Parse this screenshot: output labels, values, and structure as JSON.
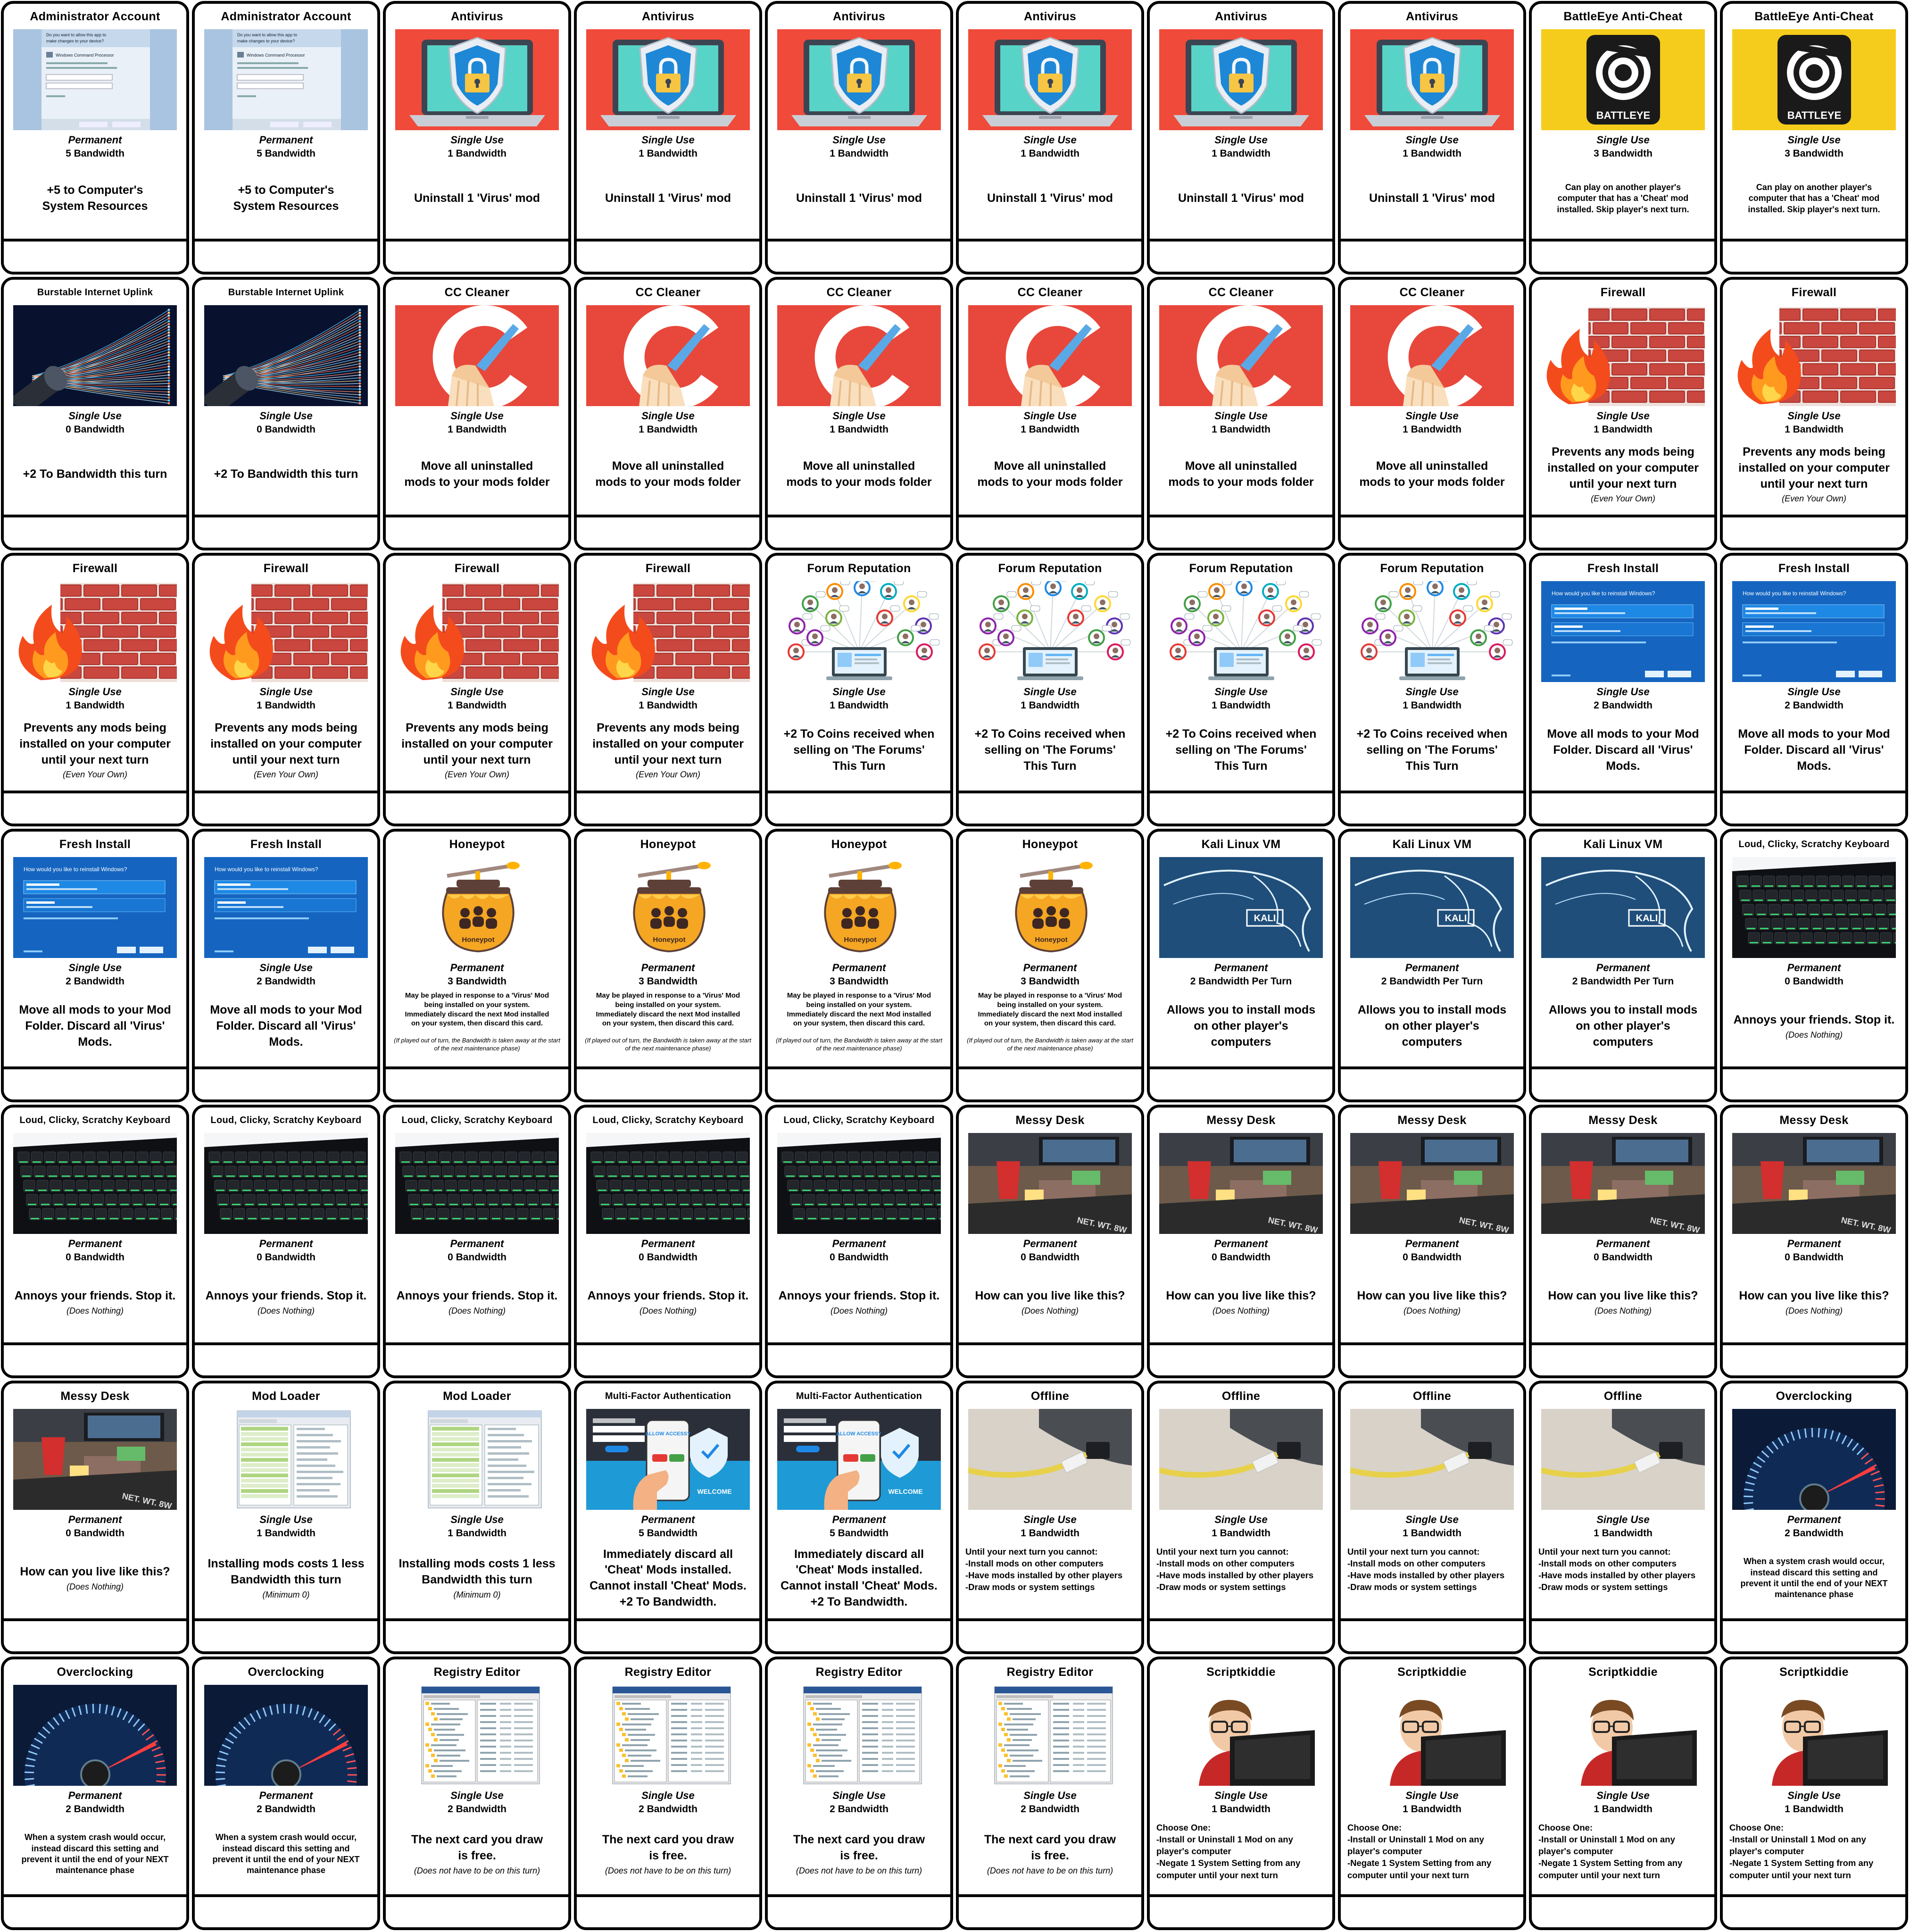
{
  "cards": [
    {
      "title": "Administrator Account",
      "usage": "Permanent",
      "bandwidth": "5 Bandwidth",
      "text": "+5 to Computer's\nSystem Resources",
      "note": "",
      "art": "uac",
      "style": ""
    },
    {
      "title": "Administrator Account",
      "usage": "Permanent",
      "bandwidth": "5 Bandwidth",
      "text": "+5 to Computer's\nSystem Resources",
      "note": "",
      "art": "uac",
      "style": ""
    },
    {
      "title": "Antivirus",
      "usage": "Single Use",
      "bandwidth": "1 Bandwidth",
      "text": "Uninstall 1 'Virus' mod",
      "note": "",
      "art": "antivirus",
      "style": ""
    },
    {
      "title": "Antivirus",
      "usage": "Single Use",
      "bandwidth": "1 Bandwidth",
      "text": "Uninstall 1 'Virus' mod",
      "note": "",
      "art": "antivirus",
      "style": ""
    },
    {
      "title": "Antivirus",
      "usage": "Single Use",
      "bandwidth": "1 Bandwidth",
      "text": "Uninstall 1 'Virus' mod",
      "note": "",
      "art": "antivirus",
      "style": ""
    },
    {
      "title": "Antivirus",
      "usage": "Single Use",
      "bandwidth": "1 Bandwidth",
      "text": "Uninstall 1 'Virus' mod",
      "note": "",
      "art": "antivirus",
      "style": ""
    },
    {
      "title": "Antivirus",
      "usage": "Single Use",
      "bandwidth": "1 Bandwidth",
      "text": "Uninstall 1 'Virus' mod",
      "note": "",
      "art": "antivirus",
      "style": ""
    },
    {
      "title": "Antivirus",
      "usage": "Single Use",
      "bandwidth": "1 Bandwidth",
      "text": "Uninstall 1 'Virus' mod",
      "note": "",
      "art": "antivirus",
      "style": ""
    },
    {
      "title": "BattleEye Anti-Cheat",
      "usage": "Single Use",
      "bandwidth": "3 Bandwidth",
      "text": "Can play on another player's\ncomputer that has a 'Cheat' mod\ninstalled. Skip player's next turn.",
      "note": "",
      "art": "battleye",
      "style": "small"
    },
    {
      "title": "BattleEye Anti-Cheat",
      "usage": "Single Use",
      "bandwidth": "3 Bandwidth",
      "text": "Can play on another player's\ncomputer that has a 'Cheat' mod\ninstalled. Skip player's next turn.",
      "note": "",
      "art": "battleye",
      "style": "small"
    },
    {
      "title": "Burstable Internet Uplink",
      "usage": "Single Use",
      "bandwidth": "0 Bandwidth",
      "text": "+2 To Bandwidth this turn",
      "note": "",
      "art": "fiber",
      "style": "",
      "long": true
    },
    {
      "title": "Burstable Internet Uplink",
      "usage": "Single Use",
      "bandwidth": "0 Bandwidth",
      "text": "+2 To Bandwidth this turn",
      "note": "",
      "art": "fiber",
      "style": "",
      "long": true
    },
    {
      "title": "CC Cleaner",
      "usage": "Single Use",
      "bandwidth": "1 Bandwidth",
      "text": "Move all uninstalled\nmods to your mods folder",
      "note": "",
      "art": "ccleaner",
      "style": ""
    },
    {
      "title": "CC Cleaner",
      "usage": "Single Use",
      "bandwidth": "1 Bandwidth",
      "text": "Move all uninstalled\nmods to your mods folder",
      "note": "",
      "art": "ccleaner",
      "style": ""
    },
    {
      "title": "CC Cleaner",
      "usage": "Single Use",
      "bandwidth": "1 Bandwidth",
      "text": "Move all uninstalled\nmods to your mods folder",
      "note": "",
      "art": "ccleaner",
      "style": ""
    },
    {
      "title": "CC Cleaner",
      "usage": "Single Use",
      "bandwidth": "1 Bandwidth",
      "text": "Move all uninstalled\nmods to your mods folder",
      "note": "",
      "art": "ccleaner",
      "style": ""
    },
    {
      "title": "CC Cleaner",
      "usage": "Single Use",
      "bandwidth": "1 Bandwidth",
      "text": "Move all uninstalled\nmods to your mods folder",
      "note": "",
      "art": "ccleaner",
      "style": ""
    },
    {
      "title": "CC Cleaner",
      "usage": "Single Use",
      "bandwidth": "1 Bandwidth",
      "text": "Move all uninstalled\nmods to your mods folder",
      "note": "",
      "art": "ccleaner",
      "style": ""
    },
    {
      "title": "Firewall",
      "usage": "Single Use",
      "bandwidth": "1 Bandwidth",
      "text": "Prevents any mods being\ninstalled on your computer\nuntil your next turn",
      "note": "(Even Your Own)",
      "art": "firewall",
      "style": ""
    },
    {
      "title": "Firewall",
      "usage": "Single Use",
      "bandwidth": "1 Bandwidth",
      "text": "Prevents any mods being\ninstalled on your computer\nuntil your next turn",
      "note": "(Even Your Own)",
      "art": "firewall",
      "style": ""
    },
    {
      "title": "Firewall",
      "usage": "Single Use",
      "bandwidth": "1 Bandwidth",
      "text": "Prevents any mods being\ninstalled on your computer\nuntil your next turn",
      "note": "(Even Your Own)",
      "art": "firewall",
      "style": ""
    },
    {
      "title": "Firewall",
      "usage": "Single Use",
      "bandwidth": "1 Bandwidth",
      "text": "Prevents any mods being\ninstalled on your computer\nuntil your next turn",
      "note": "(Even Your Own)",
      "art": "firewall",
      "style": ""
    },
    {
      "title": "Firewall",
      "usage": "Single Use",
      "bandwidth": "1 Bandwidth",
      "text": "Prevents any mods being\ninstalled on your computer\nuntil your next turn",
      "note": "(Even Your Own)",
      "art": "firewall",
      "style": ""
    },
    {
      "title": "Firewall",
      "usage": "Single Use",
      "bandwidth": "1 Bandwidth",
      "text": "Prevents any mods being\ninstalled on your computer\nuntil your next turn",
      "note": "(Even Your Own)",
      "art": "firewall",
      "style": ""
    },
    {
      "title": "Forum Reputation",
      "usage": "Single Use",
      "bandwidth": "1 Bandwidth",
      "text": "+2 To Coins received when\nselling on 'The Forums'\nThis Turn",
      "note": "",
      "art": "forum",
      "style": ""
    },
    {
      "title": "Forum Reputation",
      "usage": "Single Use",
      "bandwidth": "1 Bandwidth",
      "text": "+2 To Coins received when\nselling on 'The Forums'\nThis Turn",
      "note": "",
      "art": "forum",
      "style": ""
    },
    {
      "title": "Forum Reputation",
      "usage": "Single Use",
      "bandwidth": "1 Bandwidth",
      "text": "+2 To Coins received when\nselling on 'The Forums'\nThis Turn",
      "note": "",
      "art": "forum",
      "style": ""
    },
    {
      "title": "Forum Reputation",
      "usage": "Single Use",
      "bandwidth": "1 Bandwidth",
      "text": "+2 To Coins received when\nselling on 'The Forums'\nThis Turn",
      "note": "",
      "art": "forum",
      "style": ""
    },
    {
      "title": "Fresh Install",
      "usage": "Single Use",
      "bandwidth": "2 Bandwidth",
      "text": "Move all mods to your Mod\nFolder. Discard all 'Virus'\nMods.",
      "note": "",
      "art": "reinstall",
      "style": ""
    },
    {
      "title": "Fresh Install",
      "usage": "Single Use",
      "bandwidth": "2 Bandwidth",
      "text": "Move all mods to your Mod\nFolder. Discard all 'Virus'\nMods.",
      "note": "",
      "art": "reinstall",
      "style": ""
    },
    {
      "title": "Fresh Install",
      "usage": "Single Use",
      "bandwidth": "2 Bandwidth",
      "text": "Move all mods to your Mod\nFolder. Discard all 'Virus'\nMods.",
      "note": "",
      "art": "reinstall",
      "style": ""
    },
    {
      "title": "Fresh Install",
      "usage": "Single Use",
      "bandwidth": "2 Bandwidth",
      "text": "Move all mods to your Mod\nFolder. Discard all 'Virus'\nMods.",
      "note": "",
      "art": "reinstall",
      "style": ""
    },
    {
      "title": "Honeypot",
      "usage": "Permanent",
      "bandwidth": "3 Bandwidth",
      "text": "May be played in response to a 'Virus' Mod\nbeing installed on your system.\nImmediately discard the next Mod installed\non your system, then discard this card.",
      "note": "(If played out of turn, the Bandwidth is taken away at the start of the next maintenance phase)",
      "art": "honeypot",
      "style": "tiny"
    },
    {
      "title": "Honeypot",
      "usage": "Permanent",
      "bandwidth": "3 Bandwidth",
      "text": "May be played in response to a 'Virus' Mod\nbeing installed on your system.\nImmediately discard the next Mod installed\non your system, then discard this card.",
      "note": "(If played out of turn, the Bandwidth is taken away at the start of the next maintenance phase)",
      "art": "honeypot",
      "style": "tiny"
    },
    {
      "title": "Honeypot",
      "usage": "Permanent",
      "bandwidth": "3 Bandwidth",
      "text": "May be played in response to a 'Virus' Mod\nbeing installed on your system.\nImmediately discard the next Mod installed\non your system, then discard this card.",
      "note": "(If played out of turn, the Bandwidth is taken away at the start of the next maintenance phase)",
      "art": "honeypot",
      "style": "tiny"
    },
    {
      "title": "Honeypot",
      "usage": "Permanent",
      "bandwidth": "3 Bandwidth",
      "text": "May be played in response to a 'Virus' Mod\nbeing installed on your system.\nImmediately discard the next Mod installed\non your system, then discard this card.",
      "note": "(If played out of turn, the Bandwidth is taken away at the start of the next maintenance phase)",
      "art": "honeypot",
      "style": "tiny"
    },
    {
      "title": "Kali Linux VM",
      "usage": "Permanent",
      "bandwidth": "2 Bandwidth Per Turn",
      "text": "Allows you to install mods\non other player's\ncomputers",
      "note": "",
      "art": "kali",
      "style": ""
    },
    {
      "title": "Kali Linux VM",
      "usage": "Permanent",
      "bandwidth": "2 Bandwidth Per Turn",
      "text": "Allows you to install mods\non other player's\ncomputers",
      "note": "",
      "art": "kali",
      "style": ""
    },
    {
      "title": "Kali Linux VM",
      "usage": "Permanent",
      "bandwidth": "2 Bandwidth Per Turn",
      "text": "Allows you to install mods\non other player's\ncomputers",
      "note": "",
      "art": "kali",
      "style": ""
    },
    {
      "title": "Loud, Clicky, Scratchy Keyboard",
      "usage": "Permanent",
      "bandwidth": "0 Bandwidth",
      "text": "Annoys your friends. Stop it.",
      "note": "(Does Nothing)",
      "art": "keyboard",
      "style": "",
      "long": true
    },
    {
      "title": "Loud, Clicky, Scratchy Keyboard",
      "usage": "Permanent",
      "bandwidth": "0 Bandwidth",
      "text": "Annoys your friends. Stop it.",
      "note": "(Does Nothing)",
      "art": "keyboard",
      "style": "",
      "long": true
    },
    {
      "title": "Loud, Clicky, Scratchy Keyboard",
      "usage": "Permanent",
      "bandwidth": "0 Bandwidth",
      "text": "Annoys your friends. Stop it.",
      "note": "(Does Nothing)",
      "art": "keyboard",
      "style": "",
      "long": true
    },
    {
      "title": "Loud, Clicky, Scratchy Keyboard",
      "usage": "Permanent",
      "bandwidth": "0 Bandwidth",
      "text": "Annoys your friends. Stop it.",
      "note": "(Does Nothing)",
      "art": "keyboard",
      "style": "",
      "long": true
    },
    {
      "title": "Loud, Clicky, Scratchy Keyboard",
      "usage": "Permanent",
      "bandwidth": "0 Bandwidth",
      "text": "Annoys your friends. Stop it.",
      "note": "(Does Nothing)",
      "art": "keyboard",
      "style": "",
      "long": true
    },
    {
      "title": "Loud, Clicky, Scratchy Keyboard",
      "usage": "Permanent",
      "bandwidth": "0 Bandwidth",
      "text": "Annoys your friends. Stop it.",
      "note": "(Does Nothing)",
      "art": "keyboard",
      "style": "",
      "long": true
    },
    {
      "title": "Messy Desk",
      "usage": "Permanent",
      "bandwidth": "0 Bandwidth",
      "text": "How can you live like this?",
      "note": "(Does Nothing)",
      "art": "desk",
      "style": ""
    },
    {
      "title": "Messy Desk",
      "usage": "Permanent",
      "bandwidth": "0 Bandwidth",
      "text": "How can you live like this?",
      "note": "(Does Nothing)",
      "art": "desk",
      "style": ""
    },
    {
      "title": "Messy Desk",
      "usage": "Permanent",
      "bandwidth": "0 Bandwidth",
      "text": "How can you live like this?",
      "note": "(Does Nothing)",
      "art": "desk",
      "style": ""
    },
    {
      "title": "Messy Desk",
      "usage": "Permanent",
      "bandwidth": "0 Bandwidth",
      "text": "How can you live like this?",
      "note": "(Does Nothing)",
      "art": "desk",
      "style": ""
    },
    {
      "title": "Messy Desk",
      "usage": "Permanent",
      "bandwidth": "0 Bandwidth",
      "text": "How can you live like this?",
      "note": "(Does Nothing)",
      "art": "desk",
      "style": ""
    },
    {
      "title": "Messy Desk",
      "usage": "Permanent",
      "bandwidth": "0 Bandwidth",
      "text": "How can you live like this?",
      "note": "(Does Nothing)",
      "art": "desk",
      "style": ""
    },
    {
      "title": "Mod Loader",
      "usage": "Single Use",
      "bandwidth": "1 Bandwidth",
      "text": "Installing mods costs 1 less\nBandwidth this turn",
      "note": "(Minimum 0)",
      "art": "modloader",
      "style": ""
    },
    {
      "title": "Mod Loader",
      "usage": "Single Use",
      "bandwidth": "1 Bandwidth",
      "text": "Installing mods costs 1 less\nBandwidth this turn",
      "note": "(Minimum 0)",
      "art": "modloader",
      "style": ""
    },
    {
      "title": "Multi-Factor Authentication",
      "usage": "Permanent",
      "bandwidth": "5 Bandwidth",
      "text": "Immediately discard all\n'Cheat' Mods installed.\nCannot install 'Cheat' Mods.\n+2 To Bandwidth.",
      "note": "",
      "art": "mfa",
      "style": "",
      "long": true
    },
    {
      "title": "Multi-Factor Authentication",
      "usage": "Permanent",
      "bandwidth": "5 Bandwidth",
      "text": "Immediately discard all\n'Cheat' Mods installed.\nCannot install 'Cheat' Mods.\n+2 To Bandwidth.",
      "note": "",
      "art": "mfa",
      "style": "",
      "long": true
    },
    {
      "title": "Offline",
      "usage": "Single Use",
      "bandwidth": "1 Bandwidth",
      "text": "Until your next turn you cannot:\n-Install mods on other computers\n-Have mods installed by other players\n-Draw mods or system settings",
      "note": "",
      "art": "offline",
      "style": "left"
    },
    {
      "title": "Offline",
      "usage": "Single Use",
      "bandwidth": "1 Bandwidth",
      "text": "Until your next turn you cannot:\n-Install mods on other computers\n-Have mods installed by other players\n-Draw mods or system settings",
      "note": "",
      "art": "offline",
      "style": "left"
    },
    {
      "title": "Offline",
      "usage": "Single Use",
      "bandwidth": "1 Bandwidth",
      "text": "Until your next turn you cannot:\n-Install mods on other computers\n-Have mods installed by other players\n-Draw mods or system settings",
      "note": "",
      "art": "offline",
      "style": "left"
    },
    {
      "title": "Offline",
      "usage": "Single Use",
      "bandwidth": "1 Bandwidth",
      "text": "Until your next turn you cannot:\n-Install mods on other computers\n-Have mods installed by other players\n-Draw mods or system settings",
      "note": "",
      "art": "offline",
      "style": "left"
    },
    {
      "title": "Overclocking",
      "usage": "Permanent",
      "bandwidth": "2 Bandwidth",
      "text": "When a system crash would occur,\ninstead discard this setting and\nprevent it until the end of your NEXT\nmaintenance phase",
      "note": "",
      "art": "speed",
      "style": "small"
    },
    {
      "title": "Overclocking",
      "usage": "Permanent",
      "bandwidth": "2 Bandwidth",
      "text": "When a system crash would occur,\ninstead discard this setting and\nprevent it until the end of your NEXT\nmaintenance phase",
      "note": "",
      "art": "speed",
      "style": "small"
    },
    {
      "title": "Overclocking",
      "usage": "Permanent",
      "bandwidth": "2 Bandwidth",
      "text": "When a system crash would occur,\ninstead discard this setting and\nprevent it until the end of your NEXT\nmaintenance phase",
      "note": "",
      "art": "speed",
      "style": "small"
    },
    {
      "title": "Registry Editor",
      "usage": "Single Use",
      "bandwidth": "2 Bandwidth",
      "text": "The next card you draw\nis free.",
      "note": "(Does not have to be on this turn)",
      "art": "regedit",
      "style": ""
    },
    {
      "title": "Registry Editor",
      "usage": "Single Use",
      "bandwidth": "2 Bandwidth",
      "text": "The next card you draw\nis free.",
      "note": "(Does not have to be on this turn)",
      "art": "regedit",
      "style": ""
    },
    {
      "title": "Registry Editor",
      "usage": "Single Use",
      "bandwidth": "2 Bandwidth",
      "text": "The next card you draw\nis free.",
      "note": "(Does not have to be on this turn)",
      "art": "regedit",
      "style": ""
    },
    {
      "title": "Registry Editor",
      "usage": "Single Use",
      "bandwidth": "2 Bandwidth",
      "text": "The next card you draw\nis free.",
      "note": "(Does not have to be on this turn)",
      "art": "regedit",
      "style": ""
    },
    {
      "title": "Scriptkiddie",
      "usage": "Single Use",
      "bandwidth": "1 Bandwidth",
      "text": "Choose One:\n-Install or Uninstall 1 Mod on any\nplayer's computer\n-Negate 1 System Setting from any\ncomputer until your next turn",
      "note": "",
      "art": "kid",
      "style": "left"
    },
    {
      "title": "Scriptkiddie",
      "usage": "Single Use",
      "bandwidth": "1 Bandwidth",
      "text": "Choose One:\n-Install or Uninstall 1 Mod on any\nplayer's computer\n-Negate 1 System Setting from any\ncomputer until your next turn",
      "note": "",
      "art": "kid",
      "style": "left"
    },
    {
      "title": "Scriptkiddie",
      "usage": "Single Use",
      "bandwidth": "1 Bandwidth",
      "text": "Choose One:\n-Install or Uninstall 1 Mod on any\nplayer's computer\n-Negate 1 System Setting from any\ncomputer until your next turn",
      "note": "",
      "art": "kid",
      "style": "left"
    },
    {
      "title": "Scriptkiddie",
      "usage": "Single Use",
      "bandwidth": "1 Bandwidth",
      "text": "Choose One:\n-Install or Uninstall 1 Mod on any\nplayer's computer\n-Negate 1 System Setting from any\ncomputer until your next turn",
      "note": "",
      "art": "kid",
      "style": "left"
    }
  ],
  "art_labels": {
    "battleye": "BATTLEYE",
    "honeypot": "Honeypot",
    "kali": "KALI",
    "mfa_welcome": "WELCOME",
    "mfa_allow": "ALLOW ACCESS?",
    "reinstall_prompt": "How would you like to reinstall Windows?",
    "uac_prompt": "Do you want to allow this app to make changes to your device?",
    "uac_app": "Windows Command Processor",
    "desk_sign": "NET. WT. 8W"
  },
  "colors": {
    "card_border": "#000000",
    "card_bg": "#ffffff",
    "antivirus_bg": "#f04a3a",
    "ccleaner_bg": "#e8473b",
    "battleye_bg": "#f5cc1b",
    "kali_bg": "#1f4e7a",
    "reinstall_bg": "#1565c0",
    "mfa_bg": "#1e9ad6"
  }
}
